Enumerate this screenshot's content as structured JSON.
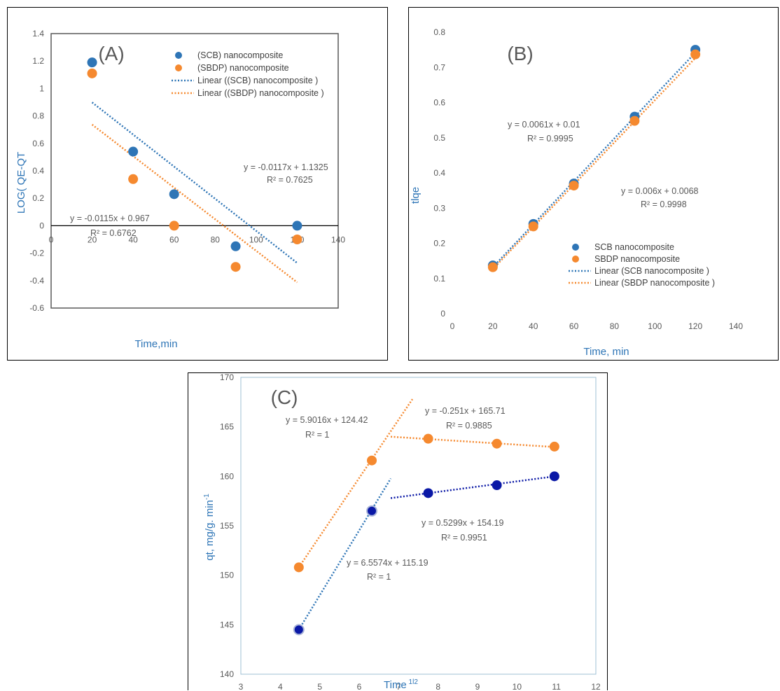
{
  "chart_data": [
    {
      "type": "scatter",
      "panel_label": "(A)",
      "xlabel": "Time,min",
      "ylabel": "LOG( QE-QT",
      "xlim": [
        0,
        140
      ],
      "ylim": [
        -0.6,
        1.4
      ],
      "x_ticks": [
        "0",
        "20",
        "40",
        "60",
        "80",
        "100",
        "120",
        "140"
      ],
      "y_ticks": [
        "-0.6",
        "-0.4",
        "-0.2",
        "0",
        "0.2",
        "0.4",
        "0.6",
        "0.8",
        "1",
        "1.2",
        "1.4"
      ],
      "legend_position": "top-right",
      "grid": false,
      "series": [
        {
          "name": "(SCB) nanocomposite",
          "color": "#2E75B6",
          "x": [
            20,
            40,
            60,
            90,
            120
          ],
          "y": [
            1.19,
            0.54,
            0.23,
            -0.15,
            0.0
          ]
        },
        {
          "name": "(SBDP) nanocomposite",
          "color": "#F5892F",
          "x": [
            20,
            40,
            60,
            90,
            120
          ],
          "y": [
            1.11,
            0.34,
            0.0,
            -0.3,
            -0.1
          ]
        }
      ],
      "trendlines": [
        {
          "name": "Linear ((SCB) nanocomposite )",
          "color": "#2E75B6",
          "slope": -0.0117,
          "intercept": 1.1325,
          "x_range": [
            20,
            120
          ],
          "equation": "y = -0.0117x + 1.1325",
          "r2": "R² = 0.7625"
        },
        {
          "name": "Linear ((SBDP) nanocomposite )",
          "color": "#F5892F",
          "slope": -0.0115,
          "intercept": 0.967,
          "x_range": [
            20,
            120
          ],
          "equation": "y = -0.0115x + 0.967",
          "r2": "R² = 0.6762"
        }
      ]
    },
    {
      "type": "scatter",
      "panel_label": "(B)",
      "xlabel": "Time, min",
      "ylabel": "tlqe",
      "xlim": [
        0,
        140
      ],
      "ylim": [
        0,
        0.8
      ],
      "x_ticks": [
        "0",
        "20",
        "40",
        "60",
        "80",
        "100",
        "120",
        "140"
      ],
      "y_ticks": [
        "0",
        "0.1",
        "0.2",
        "0.3",
        "0.4",
        "0.5",
        "0.6",
        "0.7",
        "0.8"
      ],
      "legend_position": "bottom-right",
      "grid": false,
      "series": [
        {
          "name": "SCB nanocomposite",
          "color": "#2E75B6",
          "x": [
            20,
            40,
            60,
            90,
            120
          ],
          "y": [
            0.137,
            0.255,
            0.37,
            0.56,
            0.75
          ]
        },
        {
          "name": "SBDP nanocomposite",
          "color": "#F5892F",
          "x": [
            20,
            40,
            60,
            90,
            120
          ],
          "y": [
            0.132,
            0.248,
            0.364,
            0.548,
            0.737
          ]
        }
      ],
      "trendlines": [
        {
          "name": "Linear (SCB nanocomposite )",
          "color": "#2E75B6",
          "slope": 0.0061,
          "intercept": 0.01,
          "x_range": [
            20,
            120
          ],
          "equation": "y = 0.0061x + 0.01",
          "r2": "R² = 0.9995"
        },
        {
          "name": "Linear (SBDP nanocomposite )",
          "color": "#F5892F",
          "slope": 0.006,
          "intercept": 0.0068,
          "x_range": [
            20,
            120
          ],
          "equation": "y = 0.006x + 0.0068",
          "r2": "R² = 0.9998"
        }
      ]
    },
    {
      "type": "scatter",
      "panel_label": "(C)",
      "xlabel": "Time",
      "xlabel_superscript": "1l2",
      "ylabel": "qt, mg/g. min",
      "ylabel_superscript": "-1",
      "xlim": [
        3,
        12
      ],
      "ylim": [
        140,
        170
      ],
      "x_ticks": [
        "3",
        "4",
        "5",
        "6",
        "7",
        "8",
        "9",
        "10",
        "11",
        "12"
      ],
      "y_ticks": [
        "140",
        "145",
        "150",
        "155",
        "160",
        "165",
        "170"
      ],
      "grid": false,
      "series": [
        {
          "name": "",
          "color": "#F5892F",
          "x": [
            4.47,
            6.32,
            7.75,
            9.49,
            10.95
          ],
          "y": [
            150.8,
            161.6,
            163.8,
            163.3,
            163.0
          ]
        },
        {
          "name": "",
          "color": "#0A18A6",
          "x": [
            4.47,
            6.32,
            7.75,
            9.49,
            10.95
          ],
          "y": [
            144.5,
            156.5,
            158.3,
            159.1,
            160.0
          ]
        }
      ],
      "trendlines": [
        {
          "color": "#F5892F",
          "slope": 5.9016,
          "intercept": 124.42,
          "x_range": [
            4.47,
            7.35
          ],
          "equation": "y = 5.9016x + 124.42",
          "r2": "R² = 1"
        },
        {
          "color": "#F5892F",
          "slope": -0.251,
          "intercept": 165.71,
          "x_range": [
            6.8,
            10.95
          ],
          "equation": "y = -0.251x + 165.71",
          "r2": "R² = 0.9885"
        },
        {
          "color": "#2E75B6",
          "slope": 6.5574,
          "intercept": 115.19,
          "x_range": [
            4.47,
            6.8
          ],
          "equation": "y = 6.5574x + 115.19",
          "r2": "R² = 1"
        },
        {
          "color": "#0A18A6",
          "slope": 0.5299,
          "intercept": 154.19,
          "x_range": [
            6.8,
            10.95
          ],
          "equation": "y = 0.5299x + 154.19",
          "r2": "R² = 0.9951"
        }
      ]
    }
  ]
}
